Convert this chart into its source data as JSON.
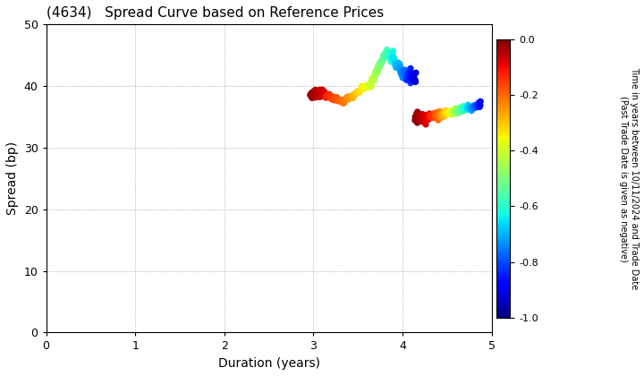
{
  "title": "(4634)   Spread Curve based on Reference Prices",
  "xlabel": "Duration (years)",
  "ylabel": "Spread (bp)",
  "colorbar_label": "Time in years between 10/11/2024 and Trade Date\n(Past Trade Date is given as negative)",
  "xlim": [
    0,
    5
  ],
  "ylim": [
    0,
    50
  ],
  "xticks": [
    0,
    1,
    2,
    3,
    4,
    5
  ],
  "yticks": [
    0,
    10,
    20,
    30,
    40,
    50
  ],
  "cmap": "jet",
  "clim": [
    -1.0,
    0.0
  ],
  "cticks": [
    0.0,
    -0.2,
    -0.4,
    -0.6,
    -0.8,
    -1.0
  ],
  "bg_color": "#ffffff",
  "grid_color": "#aaaaaa",
  "grid_style": ":",
  "point_size": 18
}
